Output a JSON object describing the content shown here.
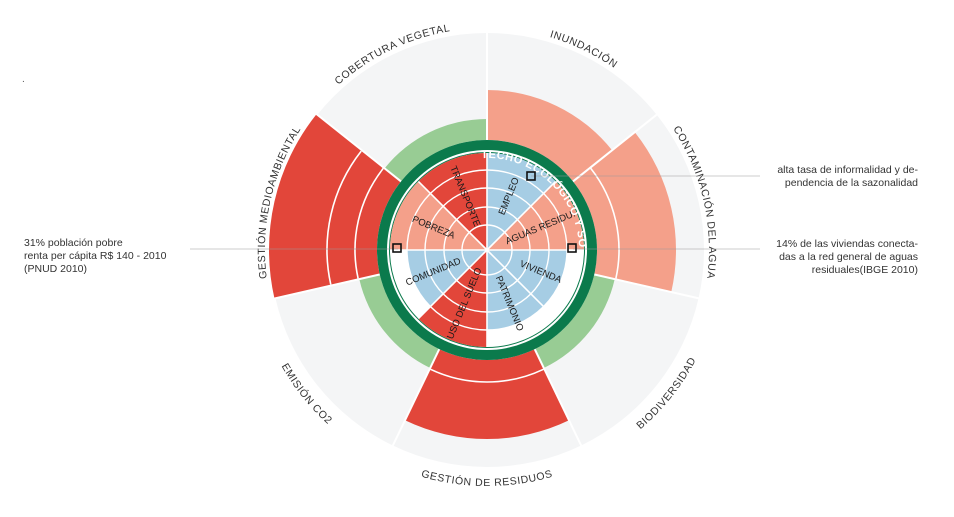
{
  "colors": {
    "outer_track": "#f4f5f6",
    "overshoot_strong": "#e2463a",
    "overshoot_soft": "#f4a08a",
    "within_green": "#98cc94",
    "ring": "#0b7a4c",
    "social_red": "#e2463a",
    "social_salmon": "#f4a08a",
    "social_blue": "#a6cde4",
    "text": "#333333",
    "leader": "#999999"
  },
  "diagram": {
    "ring_label": "TECHO ECOLÓGICO Y SOCIAL",
    "outer_sectors": [
      {
        "id": "inundacion",
        "label": "INUNDACIÓN",
        "state": "overshoot_soft",
        "level": 1
      },
      {
        "id": "contaminacion-agua",
        "label": "CONTAMINACIÓN DEL AGUA",
        "state": "overshoot_soft",
        "level": 2
      },
      {
        "id": "biodiversidad",
        "label": "BIODIVERSIDAD",
        "state": "within",
        "level": 0
      },
      {
        "id": "gestion-residuos",
        "label": "GESTIÓN DE RESIDUOS",
        "state": "overshoot_strong",
        "level": 2
      },
      {
        "id": "emision-co2",
        "label": "EMISIÓN  CO2",
        "state": "within",
        "level": 0
      },
      {
        "id": "gestion-medioambiental",
        "label": "GESTIÓN MEDIOAMBIENTAL",
        "state": "overshoot_strong",
        "level": 3
      },
      {
        "id": "cobertura-vegetal",
        "label": "COBERTURA VEGETAL",
        "state": "within",
        "level": 0
      }
    ],
    "inner_sectors": [
      {
        "id": "empleo",
        "label": "EMPLEO",
        "fill": "social_blue",
        "level": 4
      },
      {
        "id": "aguas-residuales",
        "label": "AGUAS RESIDU.",
        "fill": "social_salmon",
        "level": 4
      },
      {
        "id": "vivienda",
        "label": "VIVIENDA",
        "fill": "social_blue",
        "level": 3
      },
      {
        "id": "patrimonio",
        "label": "PATRIMONIO",
        "fill": "social_blue",
        "level": 3
      },
      {
        "id": "uso-del-suelo",
        "label": "USO DEL SUELO",
        "fill": "social_red",
        "level": 4
      },
      {
        "id": "comunidad",
        "label": "COMUNIDAD",
        "fill": "social_blue",
        "level": 3
      },
      {
        "id": "pobreza",
        "label": "POBREZA",
        "fill": "social_salmon",
        "level": 4
      },
      {
        "id": "transporte",
        "label": "TRANSPORTE",
        "fill": "social_red",
        "level": 4
      }
    ]
  },
  "annotations": {
    "dot": ".",
    "left": [
      "31% población pobre",
      "renta per cápita R$ 140 - 2010",
      "(PNUD 2010)"
    ],
    "right_top": [
      "alta tasa de informalidad y de-",
      "pendencia de la sazonalidad"
    ],
    "right_bottom": [
      "14% de las viviendas conecta-",
      "das a la red general de aguas",
      "residuales(IBGE 2010)"
    ]
  }
}
